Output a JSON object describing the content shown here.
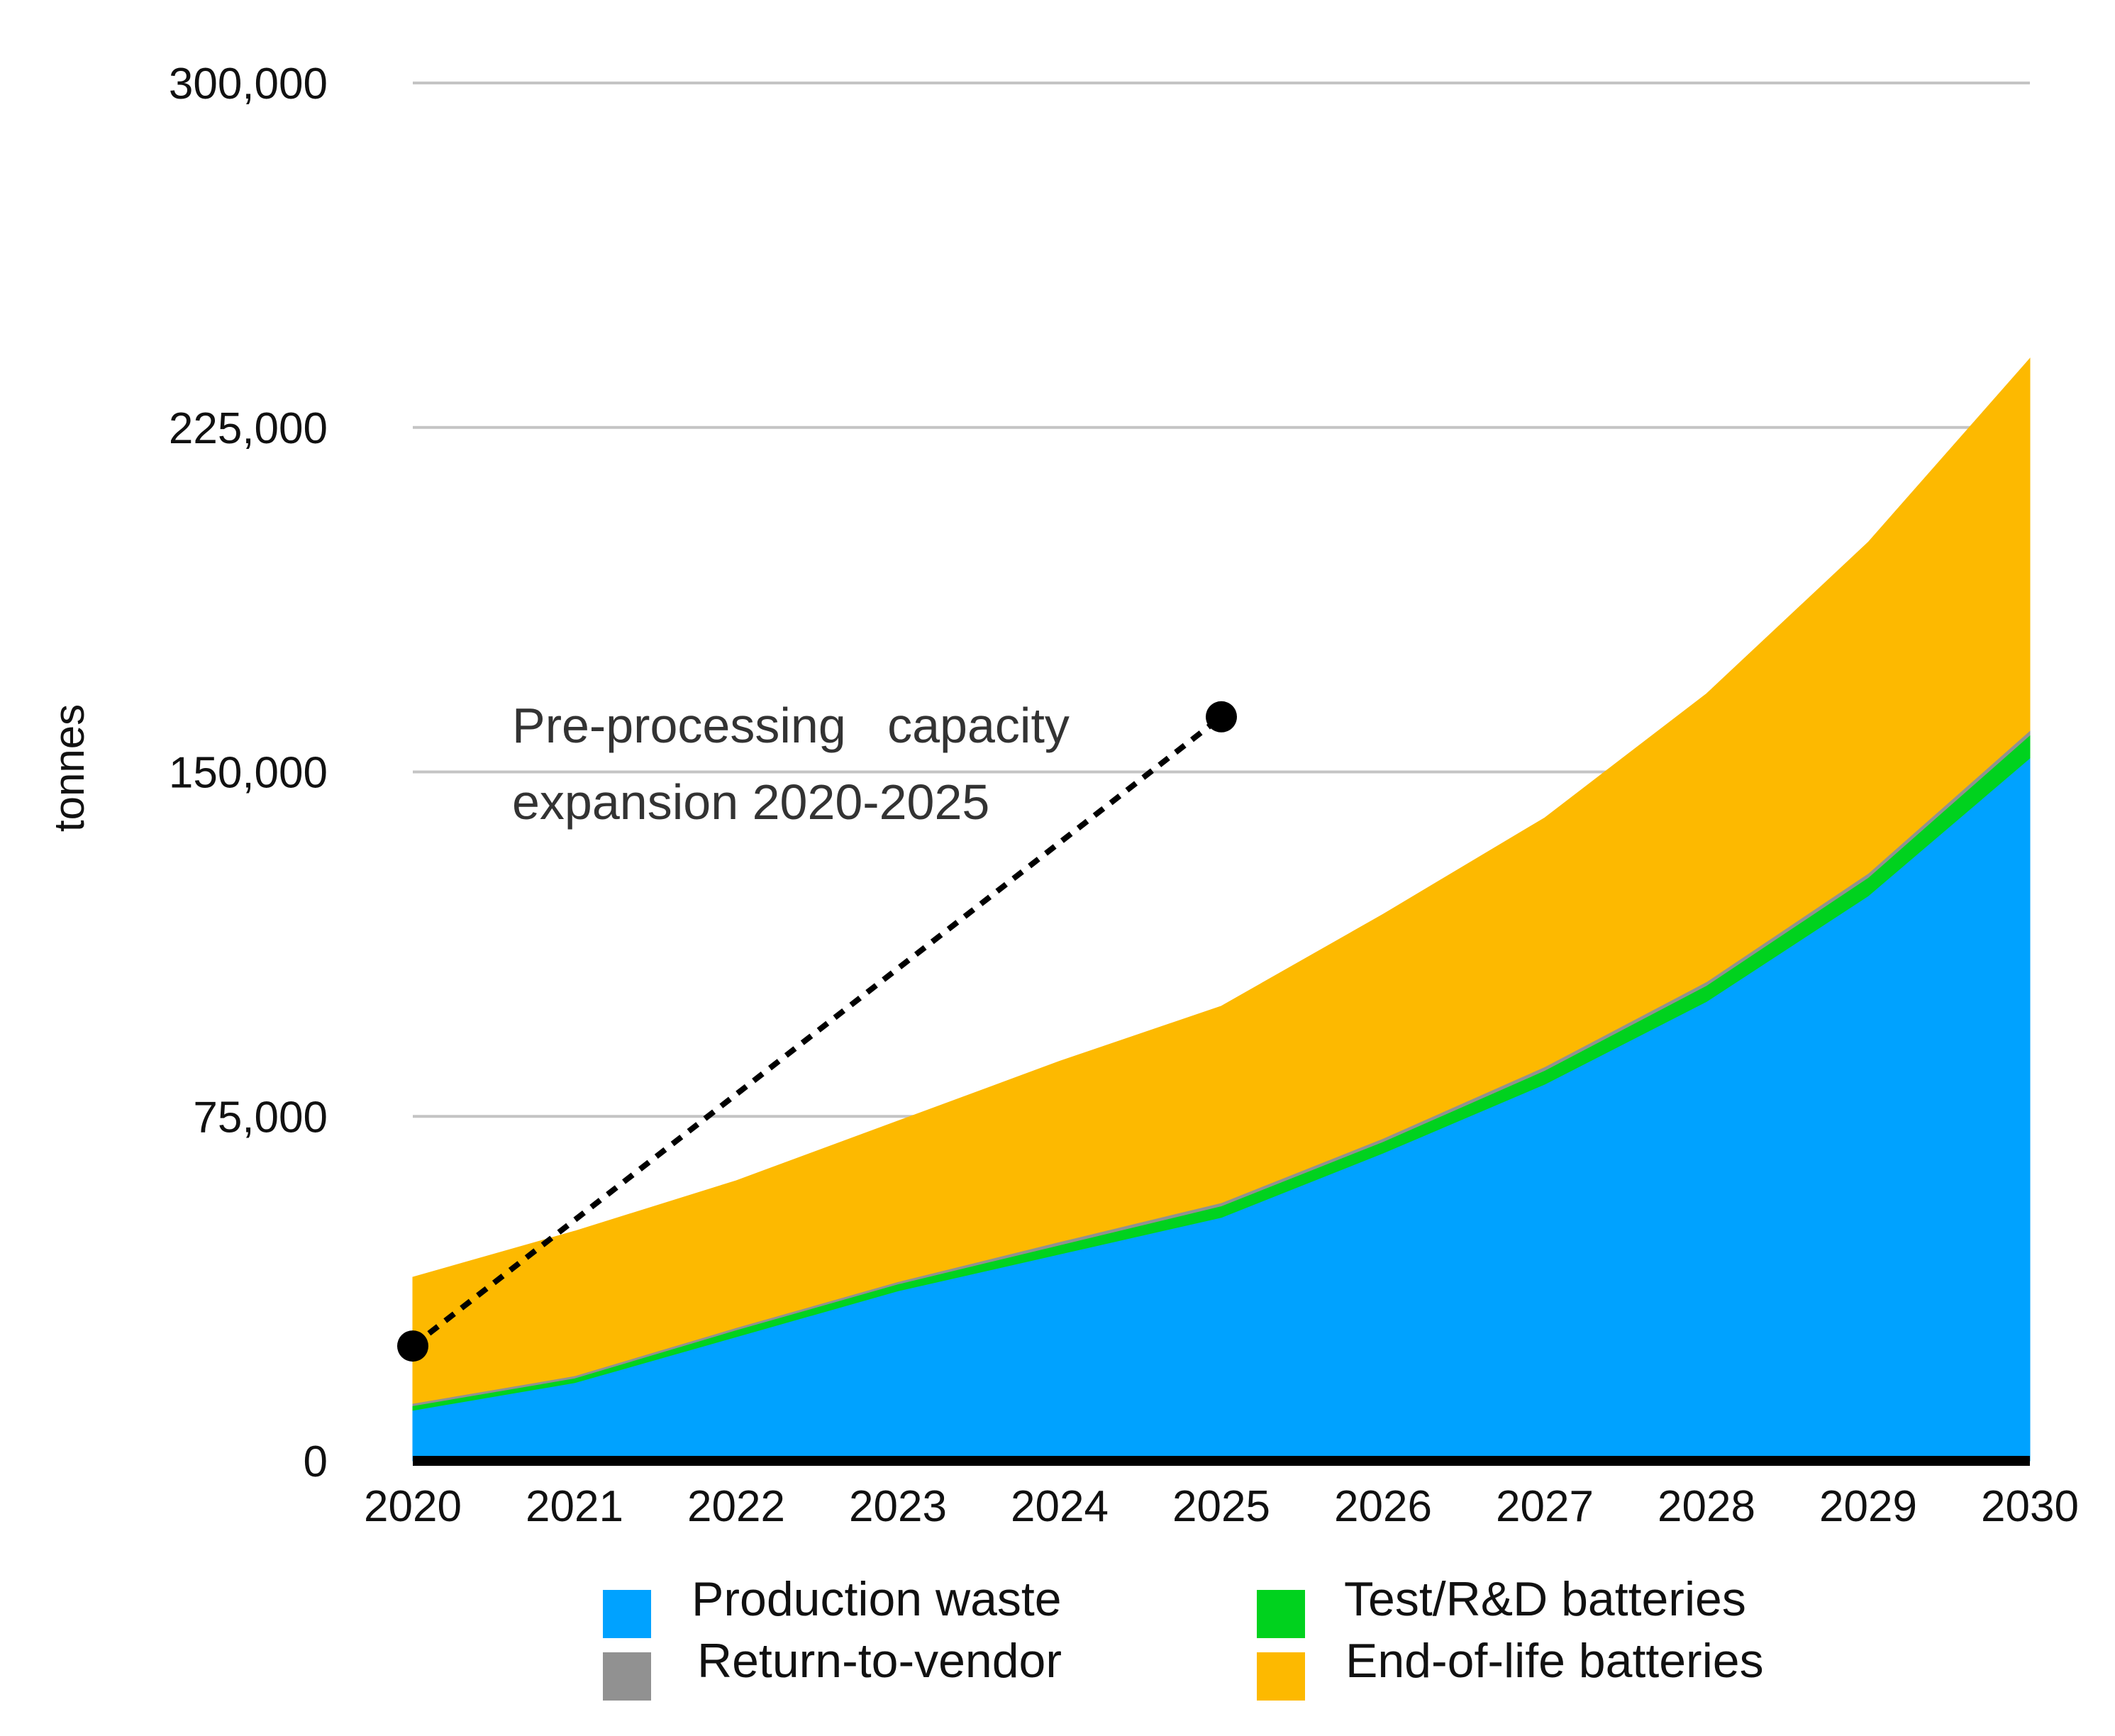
{
  "chart_data": {
    "type": "area",
    "stacked": true,
    "title": "",
    "xlabel": "",
    "ylabel": "tonnes",
    "ylim": [
      0,
      300000
    ],
    "yticks": [
      0,
      75000,
      150000,
      225000,
      300000
    ],
    "ytick_labels": [
      "0",
      "75,000",
      "150,000",
      "225,000",
      "300,000"
    ],
    "categories": [
      "2020",
      "2021",
      "2022",
      "2023",
      "2024",
      "2025",
      "2026",
      "2027",
      "2028",
      "2029",
      "2030"
    ],
    "grid": true,
    "legend_position": "bottom",
    "series": [
      {
        "name": "Production waste",
        "color": "#00A2FF",
        "values": [
          11000,
          17000,
          27000,
          37000,
          45000,
          53000,
          67000,
          82000,
          100000,
          123000,
          153000
        ]
      },
      {
        "name": "Test/R&D batteries",
        "color": "#00D21E",
        "values": [
          1000,
          1000,
          1500,
          1500,
          2000,
          2500,
          2500,
          3000,
          3500,
          4000,
          5000
        ]
      },
      {
        "name": "Return-to-vendor",
        "color": "#919191",
        "values": [
          500,
          500,
          500,
          500,
          700,
          700,
          700,
          800,
          800,
          900,
          1000
        ]
      },
      {
        "name": "End-of-life batteries",
        "color": "#FDB900",
        "values": [
          27500,
          31500,
          32000,
          35000,
          39300,
          42800,
          48800,
          54200,
          62700,
          72100,
          81000
        ]
      }
    ],
    "annotation": {
      "lines": [
        "Pre-processing   capacity",
        "expansion 2020-2025"
      ],
      "start": {
        "x": "2020",
        "y": 25000
      },
      "end": {
        "x": "2025",
        "y": 162000
      },
      "color": "#000000"
    }
  }
}
